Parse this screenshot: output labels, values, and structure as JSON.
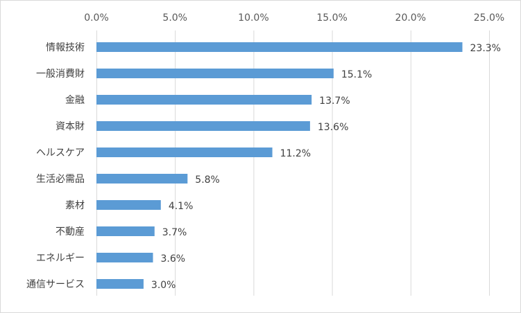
{
  "chart_data": {
    "type": "bar",
    "orientation": "horizontal",
    "categories": [
      "情報技術",
      "一般消費財",
      "金融",
      "資本財",
      "ヘルスケア",
      "生活必需品",
      "素材",
      "不動産",
      "エネルギー",
      "通信サービス"
    ],
    "values": [
      23.3,
      15.1,
      13.7,
      13.6,
      11.2,
      5.8,
      4.1,
      3.7,
      3.6,
      3.0
    ],
    "value_labels": [
      "23.3%",
      "15.1%",
      "13.7%",
      "13.6%",
      "11.2%",
      "5.8%",
      "4.1%",
      "3.7%",
      "3.6%",
      "3.0%"
    ],
    "xlim": [
      0,
      25
    ],
    "x_ticks": [
      0,
      5,
      10,
      15,
      20,
      25
    ],
    "x_tick_labels": [
      "0.0%",
      "5.0%",
      "10.0%",
      "15.0%",
      "20.0%",
      "25.0%"
    ],
    "x_axis_position": "top",
    "grid": true,
    "legend": false,
    "bar_color": "#5b9bd5",
    "grid_color": "#d9d9d9"
  }
}
